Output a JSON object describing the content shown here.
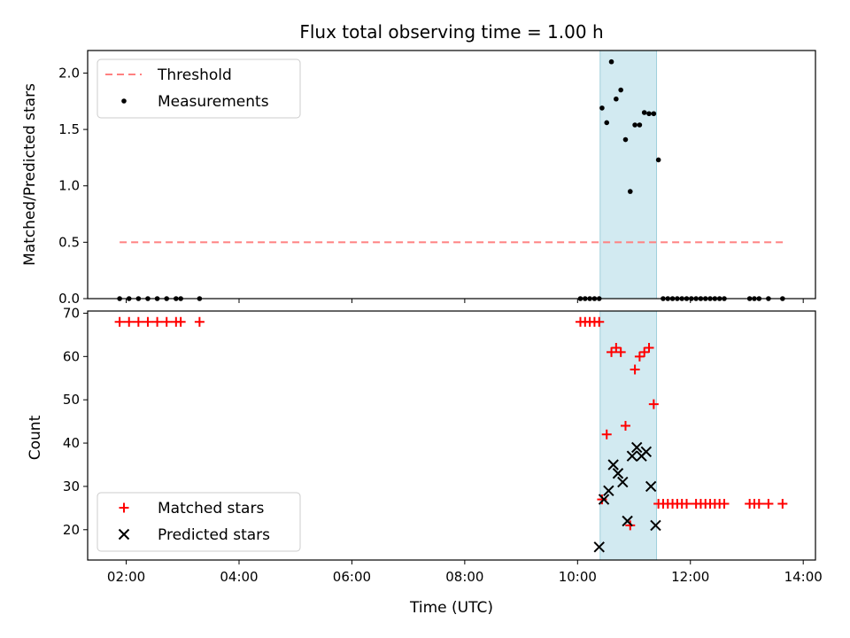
{
  "chart_data": [
    {
      "type": "scatter",
      "title": "Flux total observing time = 1.00 h",
      "ylabel": "Matched/Predicted stars",
      "xlabel": "",
      "xlim": [
        "01:19",
        "14:13"
      ],
      "ylim": [
        0,
        2.2
      ],
      "yticks": [
        "0.0",
        "0.5",
        "1.0",
        "1.5",
        "2.0"
      ],
      "xticks": [
        "02:00",
        "04:00",
        "06:00",
        "08:00",
        "10:00",
        "12:00",
        "14:00"
      ],
      "shaded_region": {
        "from": "10:24",
        "to": "11:24",
        "color": "#add8e6"
      },
      "legend_position": "upper-left",
      "series": [
        {
          "name": "Threshold",
          "style": "dashed-line",
          "color": "#ff8080",
          "x": [
            "01:53",
            "13:40"
          ],
          "y": [
            0.5,
            0.5
          ]
        },
        {
          "name": "Measurements",
          "style": "dot",
          "color": "#000000",
          "x": [
            "01:53",
            "02:03",
            "02:13",
            "02:23",
            "02:33",
            "02:43",
            "02:53",
            "02:58",
            "03:18",
            "10:03",
            "10:08",
            "10:13",
            "10:18",
            "10:23",
            "10:26",
            "10:31",
            "10:36",
            "10:41",
            "10:46",
            "10:51",
            "10:56",
            "11:01",
            "11:06",
            "11:11",
            "11:16",
            "11:21",
            "11:26",
            "11:31",
            "11:36",
            "11:41",
            "11:46",
            "11:51",
            "11:56",
            "12:01",
            "12:06",
            "12:11",
            "12:16",
            "12:21",
            "12:26",
            "12:31",
            "12:36",
            "13:03",
            "13:08",
            "13:13",
            "13:23",
            "13:38"
          ],
          "y": [
            0,
            0,
            0,
            0,
            0,
            0,
            0,
            0,
            0,
            0,
            0,
            0,
            0,
            0,
            1.69,
            1.56,
            2.1,
            1.77,
            1.85,
            1.41,
            0.95,
            1.54,
            1.54,
            1.65,
            1.64,
            1.64,
            1.23,
            0,
            0,
            0,
            0,
            0,
            0,
            0,
            0,
            0,
            0,
            0,
            0,
            0,
            0,
            0,
            0,
            0,
            0,
            0
          ]
        }
      ]
    },
    {
      "type": "scatter",
      "title": "",
      "ylabel": "Count",
      "xlabel": "Time (UTC)",
      "xlim": [
        "01:19",
        "14:13"
      ],
      "ylim": [
        13,
        70.5
      ],
      "yticks": [
        "20",
        "30",
        "40",
        "50",
        "60",
        "70"
      ],
      "xticks": [
        "02:00",
        "04:00",
        "06:00",
        "08:00",
        "10:00",
        "12:00",
        "14:00"
      ],
      "shaded_region": {
        "from": "10:24",
        "to": "11:24",
        "color": "#add8e6"
      },
      "legend_position": "lower-left",
      "series": [
        {
          "name": "Matched stars",
          "style": "plus",
          "color": "#ff0000",
          "x": [
            "01:53",
            "02:03",
            "02:13",
            "02:23",
            "02:33",
            "02:43",
            "02:53",
            "02:58",
            "03:18",
            "10:03",
            "10:08",
            "10:13",
            "10:18",
            "10:23",
            "10:26",
            "10:31",
            "10:36",
            "10:41",
            "10:46",
            "10:51",
            "10:56",
            "11:01",
            "11:06",
            "11:11",
            "11:16",
            "11:21",
            "11:26",
            "11:31",
            "11:36",
            "11:41",
            "11:46",
            "11:51",
            "11:56",
            "12:06",
            "12:11",
            "12:16",
            "12:21",
            "12:26",
            "12:31",
            "12:36",
            "13:03",
            "13:08",
            "13:13",
            "13:23",
            "13:38"
          ],
          "y": [
            68,
            68,
            68,
            68,
            68,
            68,
            68,
            68,
            68,
            68,
            68,
            68,
            68,
            68,
            27,
            42,
            61,
            62,
            61,
            44,
            21,
            57,
            60,
            61,
            62,
            49,
            26,
            26,
            26,
            26,
            26,
            26,
            26,
            26,
            26,
            26,
            26,
            26,
            26,
            26,
            26,
            26,
            26,
            26,
            26
          ]
        },
        {
          "name": "Predicted stars",
          "style": "x",
          "color": "#000000",
          "x": [
            "10:23",
            "10:28",
            "10:33",
            "10:38",
            "10:43",
            "10:48",
            "10:53",
            "10:58",
            "11:03",
            "11:08",
            "11:13",
            "11:18",
            "11:23"
          ],
          "y": [
            16,
            27,
            29,
            35,
            33,
            31,
            22,
            37,
            39,
            37,
            38,
            30,
            21
          ]
        }
      ]
    }
  ]
}
